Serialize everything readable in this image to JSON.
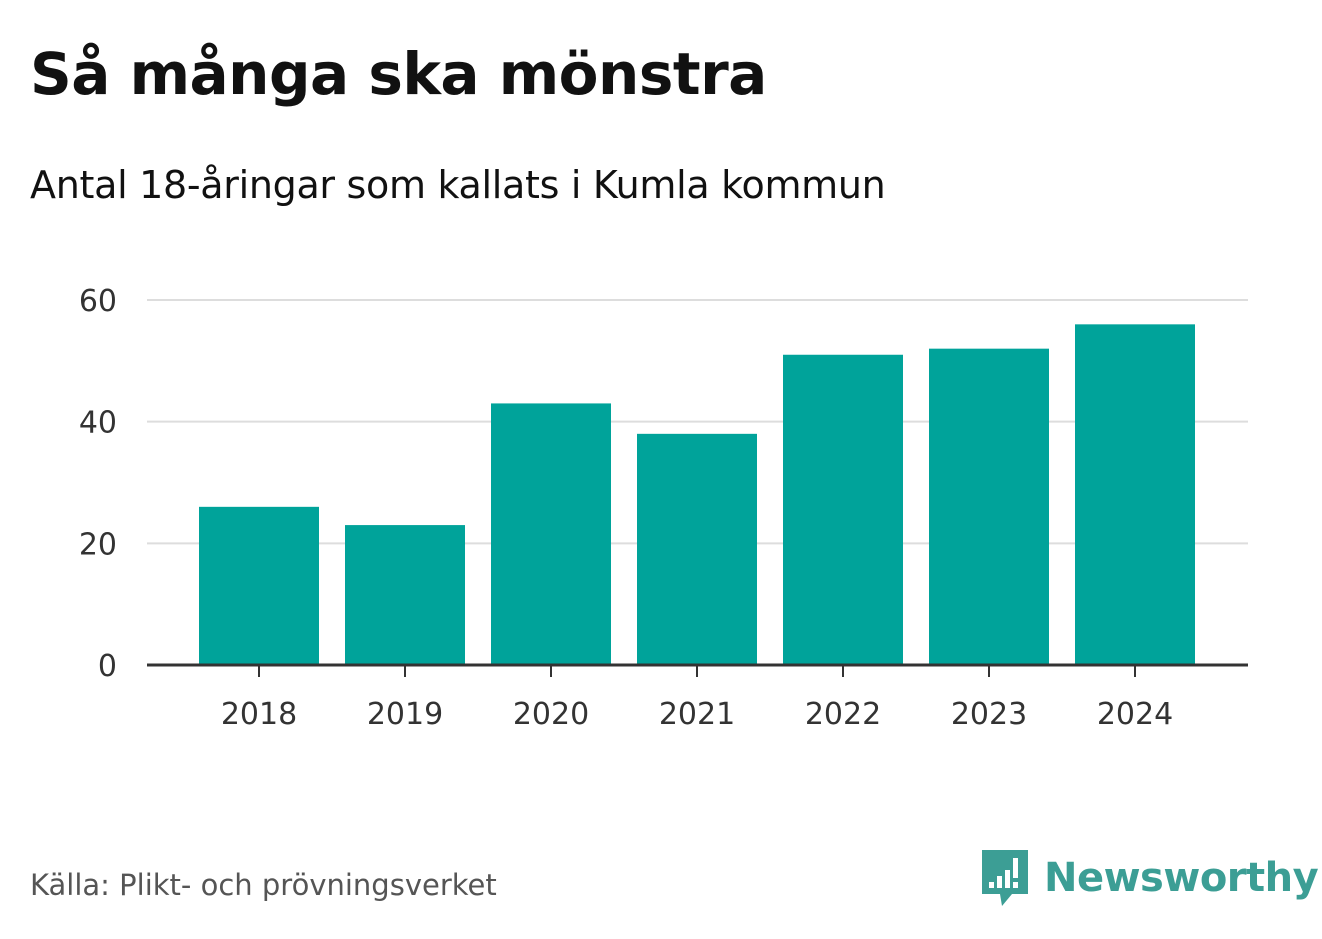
{
  "header": {
    "title": "Så många ska mönstra",
    "subtitle": "Antal 18-åringar som kallats i Kumla kommun"
  },
  "footer": {
    "source": "Källa: Plikt- och prövningsverket",
    "brand": "Newsworthy",
    "brand_color": "#3c9e95"
  },
  "chart_data": {
    "type": "bar",
    "title": "Så många ska mönstra",
    "subtitle": "Antal 18-åringar som kallats i Kumla kommun",
    "categories": [
      "2018",
      "2019",
      "2020",
      "2021",
      "2022",
      "2023",
      "2024"
    ],
    "values": [
      26,
      23,
      43,
      38,
      51,
      52,
      56
    ],
    "xlabel": "",
    "ylabel": "",
    "ylim": [
      0,
      60
    ],
    "yticks": [
      "0",
      "20",
      "40",
      "60"
    ],
    "grid": true,
    "bar_color": "#00a39a",
    "grid_color": "#dddddd",
    "axis_color": "#333333",
    "tick_label_color": "#333333"
  }
}
